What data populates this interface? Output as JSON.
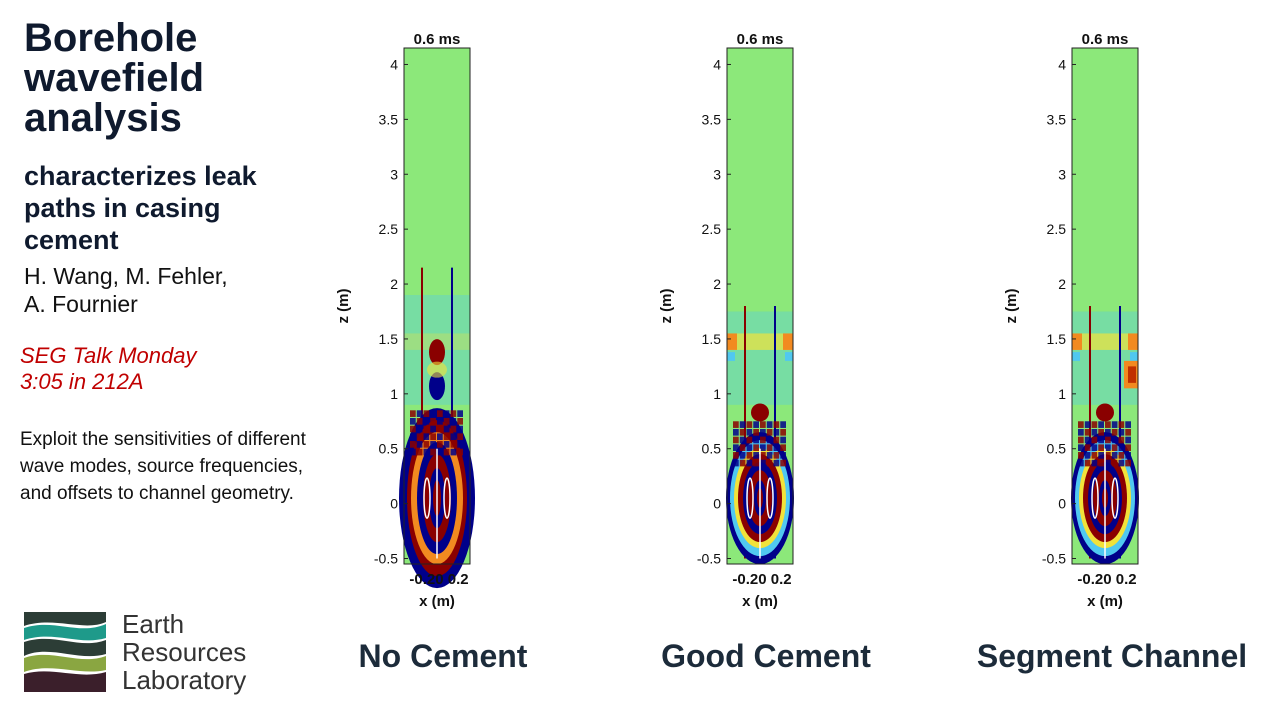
{
  "title_lines": [
    "Borehole",
    "wavefield",
    "analysis"
  ],
  "subtitle": "characterizes leak paths in casing cement",
  "authors": [
    "H. Wang, M. Fehler,",
    "A. Fournier"
  ],
  "talk": [
    "SEG Talk Monday",
    "3:05 in 212A"
  ],
  "description": "Exploit the sensitivities of different wave modes, source frequencies, and offsets to channel geometry.",
  "logo": {
    "lines": [
      "Earth",
      "Resources",
      "Laboratory"
    ],
    "colors": [
      "#2c3d36",
      "#1e9a8a",
      "#8aa641",
      "#3b1f2b"
    ]
  },
  "panels": [
    {
      "label": "No Cement",
      "time": "0.6 ms",
      "xlabel": "x (m)",
      "ylabel": "z (m)",
      "xticks": "-0.20 0.2"
    },
    {
      "label": "Good Cement",
      "time": "0.6 ms",
      "xlabel": "x (m)",
      "ylabel": "z (m)",
      "xticks": "-0.20 0.2"
    },
    {
      "label": "Segment Channel",
      "time": "0.6 ms",
      "xlabel": "x (m)",
      "ylabel": "z (m)",
      "xticks": "-0.20 0.2"
    }
  ],
  "yticks": [
    "4",
    "3.5",
    "3",
    "2.5",
    "2",
    "1.5",
    "1",
    "0.5",
    "0",
    "-0.5"
  ],
  "colors": {
    "background": "#8ce87a",
    "red": "#8a0000",
    "blue": "#00008a",
    "yellow": "#f2e23a",
    "orange": "#f28a20",
    "cyan": "#50c8f0"
  }
}
